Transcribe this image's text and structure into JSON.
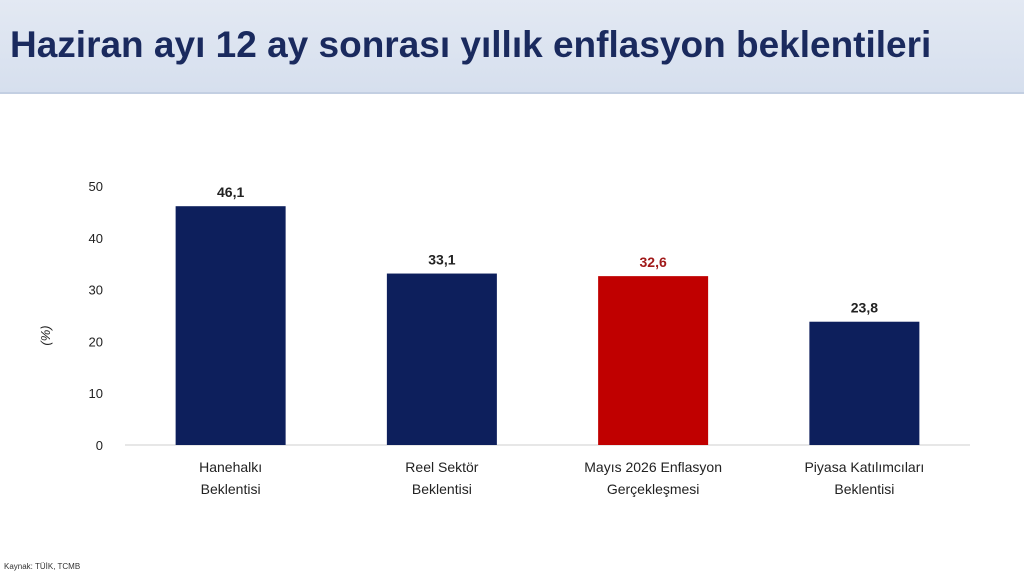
{
  "header": {
    "title": "Haziran ayı 12 ay sonrası yıllık enflasyon beklentileri"
  },
  "footer": {
    "source": "Kaynak: TÜİK, TCMB"
  },
  "colors": {
    "bar_default": "#0d1f5c",
    "bar_highlight": "#c00000",
    "label_highlight": "#a11a1a",
    "axis_text": "#222222",
    "title": "#1a2a5e"
  },
  "chart_data": {
    "type": "bar",
    "title": "",
    "xlabel": "",
    "ylabel": "(%)",
    "ylim": [
      0,
      50
    ],
    "yticks": [
      0,
      10,
      20,
      30,
      40,
      50
    ],
    "grid": false,
    "categories": [
      [
        "Hanehalkı",
        "Beklentisi"
      ],
      [
        "Reel Sektör",
        "Beklentisi"
      ],
      [
        "Mayıs 2026 Enflasyon",
        "Gerçekleşmesi"
      ],
      [
        "Piyasa Katılımcıları",
        "Beklentisi"
      ]
    ],
    "values": [
      46.1,
      33.1,
      32.6,
      23.8
    ],
    "value_labels": [
      "46,1",
      "33,1",
      "32,6",
      "23,8"
    ],
    "highlight_index": 2
  }
}
